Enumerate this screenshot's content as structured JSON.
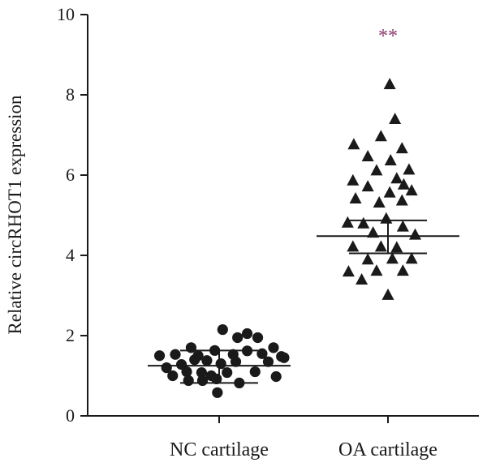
{
  "chart_data": {
    "type": "scatter",
    "ylabel": "Relative circRHOT1 expression",
    "ylim": [
      0,
      10
    ],
    "yticks": [
      0,
      2,
      4,
      6,
      8,
      10
    ],
    "yticks_labels": [
      "0",
      "2",
      "4",
      "6",
      "8",
      "10"
    ],
    "categories": [
      "NC cartilage",
      "OA cartilage"
    ],
    "grid": false,
    "series": [
      {
        "category": "NC cartilage",
        "marker": "circle",
        "color": "#1a1a1a",
        "mean": 1.25,
        "error": [
          0.82,
          1.63
        ],
        "points": [
          {
            "offset": -0.68,
            "y": 1.5
          },
          {
            "offset": -0.5,
            "y": 1.53
          },
          {
            "offset": -0.24,
            "y": 1.5
          },
          {
            "offset": -0.05,
            "y": 1.63
          },
          {
            "offset": 0.16,
            "y": 1.53
          },
          {
            "offset": 0.32,
            "y": 1.62
          },
          {
            "offset": 0.49,
            "y": 1.55
          },
          {
            "offset": 0.71,
            "y": 1.48
          },
          {
            "offset": 0.74,
            "y": 1.45
          },
          {
            "offset": -0.32,
            "y": 1.7
          },
          {
            "offset": 0.04,
            "y": 2.15
          },
          {
            "offset": 0.21,
            "y": 1.95
          },
          {
            "offset": 0.32,
            "y": 2.05
          },
          {
            "offset": 0.44,
            "y": 1.95
          },
          {
            "offset": 0.56,
            "y": 1.35
          },
          {
            "offset": 0.62,
            "y": 1.7
          },
          {
            "offset": -0.6,
            "y": 1.2
          },
          {
            "offset": -0.43,
            "y": 1.28
          },
          {
            "offset": -0.28,
            "y": 1.4
          },
          {
            "offset": -0.14,
            "y": 1.38
          },
          {
            "offset": 0.02,
            "y": 1.3
          },
          {
            "offset": 0.19,
            "y": 1.35
          },
          {
            "offset": -0.53,
            "y": 1.0
          },
          {
            "offset": -0.37,
            "y": 1.1
          },
          {
            "offset": -0.2,
            "y": 1.08
          },
          {
            "offset": -0.09,
            "y": 1.0
          },
          {
            "offset": 0.09,
            "y": 1.08
          },
          {
            "offset": 0.41,
            "y": 1.1
          },
          {
            "offset": 0.65,
            "y": 0.98
          },
          {
            "offset": -0.35,
            "y": 0.88
          },
          {
            "offset": -0.19,
            "y": 0.88
          },
          {
            "offset": -0.03,
            "y": 0.92
          },
          {
            "offset": 0.23,
            "y": 0.82
          },
          {
            "offset": -0.02,
            "y": 0.58
          }
        ]
      },
      {
        "category": "OA cartilage",
        "marker": "triangle",
        "color": "#1a1a1a",
        "mean": 4.48,
        "error": [
          4.05,
          4.87
        ],
        "points": [
          {
            "offset": 0.02,
            "y": 8.25
          },
          {
            "offset": 0.08,
            "y": 7.38
          },
          {
            "offset": -0.39,
            "y": 6.75
          },
          {
            "offset": -0.08,
            "y": 6.95
          },
          {
            "offset": 0.16,
            "y": 6.65
          },
          {
            "offset": -0.23,
            "y": 6.45
          },
          {
            "offset": 0.03,
            "y": 6.35
          },
          {
            "offset": 0.24,
            "y": 6.12
          },
          {
            "offset": -0.13,
            "y": 6.1
          },
          {
            "offset": -0.4,
            "y": 5.85
          },
          {
            "offset": 0.1,
            "y": 5.9
          },
          {
            "offset": -0.23,
            "y": 5.7
          },
          {
            "offset": 0.18,
            "y": 5.75
          },
          {
            "offset": 0.27,
            "y": 5.6
          },
          {
            "offset": -0.37,
            "y": 5.4
          },
          {
            "offset": 0.02,
            "y": 5.55
          },
          {
            "offset": -0.1,
            "y": 5.3
          },
          {
            "offset": 0.16,
            "y": 5.35
          },
          {
            "offset": -0.46,
            "y": 4.8
          },
          {
            "offset": -0.28,
            "y": 4.78
          },
          {
            "offset": -0.02,
            "y": 4.9
          },
          {
            "offset": 0.17,
            "y": 4.7
          },
          {
            "offset": -0.17,
            "y": 4.55
          },
          {
            "offset": 0.31,
            "y": 4.5
          },
          {
            "offset": -0.4,
            "y": 4.2
          },
          {
            "offset": -0.08,
            "y": 4.2
          },
          {
            "offset": 0.1,
            "y": 4.18
          },
          {
            "offset": -0.23,
            "y": 3.88
          },
          {
            "offset": 0.05,
            "y": 3.9
          },
          {
            "offset": 0.27,
            "y": 3.9
          },
          {
            "offset": -0.45,
            "y": 3.58
          },
          {
            "offset": -0.13,
            "y": 3.6
          },
          {
            "offset": 0.17,
            "y": 3.6
          },
          {
            "offset": -0.3,
            "y": 3.38
          },
          {
            "offset": 0.0,
            "y": 3.0
          }
        ]
      }
    ],
    "annotations": [
      {
        "text": "**",
        "category": "OA cartilage",
        "y": 9.6,
        "color": "#8a3a6e"
      }
    ]
  }
}
